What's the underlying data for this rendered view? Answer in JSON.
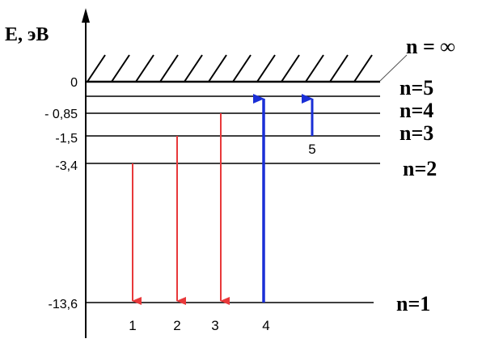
{
  "axis": {
    "label": "E, эВ"
  },
  "continuum": {
    "label": "n = ∞"
  },
  "levels": [
    {
      "value": "0",
      "energy": 0,
      "label": "n=5"
    },
    {
      "value": "- 0,85",
      "energy": -0.85,
      "label": "n=4"
    },
    {
      "value": "-1,5",
      "energy": -1.5,
      "label": "n=3"
    },
    {
      "value": "-3,4",
      "energy": -3.4,
      "label": "n=2"
    },
    {
      "value": "-13,6",
      "energy": -13.6,
      "label": "n=1"
    }
  ],
  "transitions": [
    {
      "label": "1",
      "from_n": 2,
      "to_n": 1,
      "type": "emission"
    },
    {
      "label": "2",
      "from_n": 3,
      "to_n": 1,
      "type": "emission"
    },
    {
      "label": "3",
      "from_n": 4,
      "to_n": 1,
      "type": "emission"
    },
    {
      "label": "4",
      "from_n": 1,
      "to_n": 5,
      "type": "absorption"
    },
    {
      "label": "5",
      "from_n": 3,
      "to_n": 5,
      "type": "absorption"
    }
  ],
  "colors": {
    "emission": "#e8383a",
    "absorption": "#1a2fd6",
    "line": "#000000"
  }
}
